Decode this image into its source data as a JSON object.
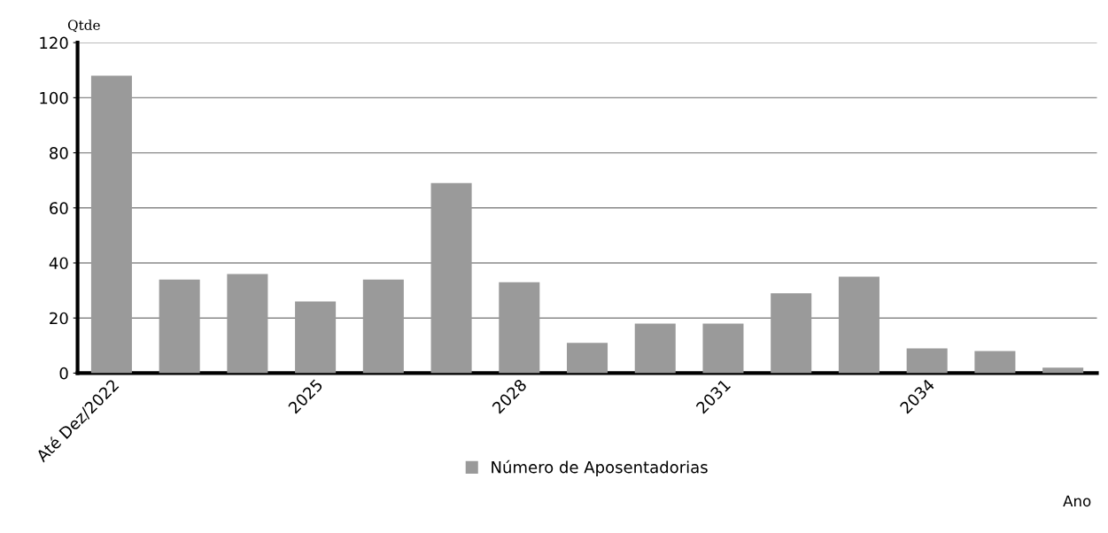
{
  "chart_data": {
    "type": "bar",
    "ylabel": "Qtde",
    "xlabel": "Ano",
    "categories": [
      "Até Dez/2022",
      null,
      null,
      "2025",
      null,
      null,
      "2028",
      null,
      null,
      "2031",
      null,
      null,
      "2034",
      null,
      null
    ],
    "series": [
      {
        "name": "Número de Aposentadorias",
        "color": "#9a9a9a",
        "values": [
          108,
          34,
          36,
          26,
          34,
          69,
          33,
          11,
          18,
          18,
          29,
          35,
          9,
          8,
          2
        ]
      }
    ],
    "ylim": [
      0,
      120
    ],
    "yticks": [
      0,
      20,
      40,
      60,
      80,
      100,
      120
    ],
    "grid": "y",
    "legend": "bottom"
  }
}
